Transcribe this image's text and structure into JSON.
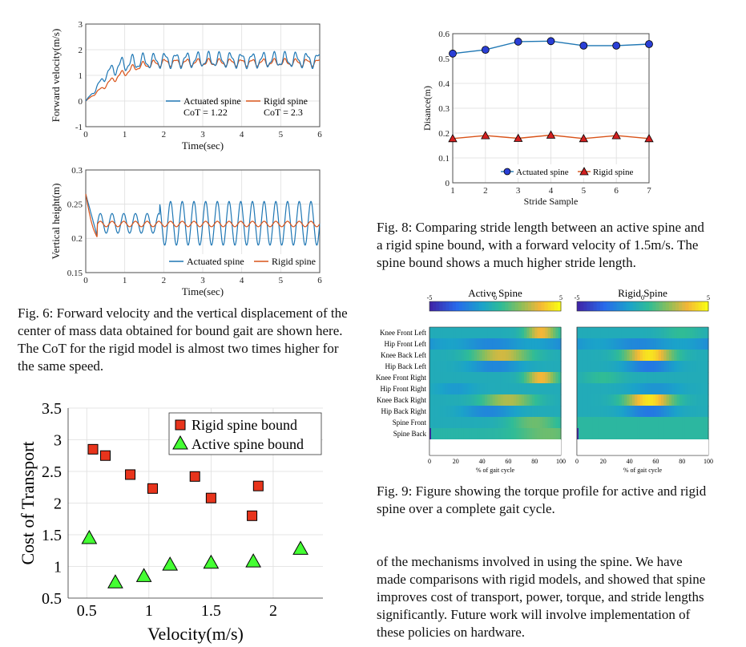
{
  "colors": {
    "actuated": "#1f77b4",
    "rigid": "#d95319",
    "rigid_marker": "#e8341c",
    "active_marker": "#44ff33",
    "marker_edge": "#000000",
    "grid": "#dedede",
    "axis": "#333333"
  },
  "captions": {
    "fig6": [
      "Fig. 6: Forward velocity and the vertical displacement of the",
      "center of mass data obtained for bound gait are shown here.",
      "The CoT for the rigid model is almost two times higher for",
      "the same speed."
    ],
    "fig8": [
      "Fig. 8: Comparing stride length between an active spine and",
      "a rigid spine bound, with a forward velocity of 1.5m/s. The",
      "spine bound shows a much higher stride length."
    ],
    "fig9": [
      "Fig. 9: Figure showing the torque profile for active and rigid",
      "spine over a complete gait cycle."
    ],
    "body": [
      "of the mechanisms involved in using the spine. We have",
      "made comparisons with rigid models, and showed that spine",
      "improves cost of transport, power, torque, and stride lengths",
      "significantly. Future work will involve implementation of",
      "these policies on hardware."
    ]
  },
  "chart_data": [
    {
      "id": "forward-velocity",
      "type": "line",
      "xlabel": "Time(sec)",
      "ylabel": "Forward velocity(m/s)",
      "xlim": [
        0,
        6
      ],
      "ylim": [
        -1,
        3
      ],
      "xticks": [
        "0",
        "1",
        "2",
        "3",
        "4",
        "5",
        "6"
      ],
      "yticks": [
        "-1",
        "0",
        "1",
        "2",
        "3"
      ],
      "grid": true,
      "legend": [
        {
          "name": "Actuated spine",
          "sub": "CoT = 1.22"
        },
        {
          "name": "Rigid spine",
          "sub": "CoT = 2.3"
        }
      ],
      "series": [
        {
          "name": "Actuated spine",
          "x": [
            0,
            0.25,
            0.5,
            0.75,
            1,
            1.25,
            1.5,
            1.75,
            2,
            2.5,
            3,
            3.5,
            4,
            4.5,
            5,
            5.5,
            6
          ],
          "y": [
            0,
            0.45,
            1.0,
            1.3,
            1.45,
            1.5,
            1.55,
            1.55,
            1.6,
            1.6,
            1.6,
            1.6,
            1.6,
            1.6,
            1.6,
            1.6,
            1.6
          ],
          "oscillation": 0.25
        },
        {
          "name": "Rigid spine",
          "x": [
            0,
            0.25,
            0.5,
            0.75,
            1,
            1.25,
            1.5,
            1.75,
            2,
            2.5,
            3,
            3.5,
            4,
            4.5,
            5,
            5.5,
            6
          ],
          "y": [
            0,
            0.3,
            0.6,
            0.9,
            1.1,
            1.3,
            1.4,
            1.45,
            1.5,
            1.5,
            1.5,
            1.5,
            1.5,
            1.5,
            1.5,
            1.5,
            1.5
          ],
          "oscillation": 0.12
        }
      ]
    },
    {
      "id": "vertical-height",
      "type": "line",
      "xlabel": "Time(sec)",
      "ylabel": "Vertical height(m)",
      "xlim": [
        0,
        6
      ],
      "ylim": [
        0.15,
        0.3
      ],
      "xticks": [
        "0",
        "1",
        "2",
        "3",
        "4",
        "5",
        "6"
      ],
      "yticks": [
        "0.15",
        "0.2",
        "0.25",
        "0.3"
      ],
      "grid": true,
      "legend": [
        {
          "name": "Actuated spine"
        },
        {
          "name": "Rigid spine"
        }
      ],
      "series": [
        {
          "name": "Actuated spine",
          "center": 0.222,
          "amplitude": 0.032,
          "period": 0.3,
          "start": 0.265
        },
        {
          "name": "Rigid spine",
          "center": 0.221,
          "amplitude": 0.004,
          "period": 0.3,
          "start": 0.265
        }
      ]
    },
    {
      "id": "cost-of-transport",
      "type": "scatter",
      "xlabel": "Velocity(m/s)",
      "ylabel": "Cost of Transport",
      "xlim": [
        0.35,
        2.4
      ],
      "ylim": [
        0.5,
        3.5
      ],
      "xticks": [
        0.5,
        1,
        1.5,
        2
      ],
      "yticks": [
        0.5,
        1,
        1.5,
        2,
        2.5,
        3,
        3.5
      ],
      "grid": true,
      "legend_position": "top-right",
      "series": [
        {
          "name": "Rigid spine bound",
          "marker": "square",
          "x": [
            0.55,
            0.65,
            0.85,
            1.03,
            1.37,
            1.5,
            1.83,
            1.88
          ],
          "y": [
            2.85,
            2.75,
            2.45,
            2.23,
            2.42,
            2.08,
            1.8,
            2.27
          ]
        },
        {
          "name": "Active spine bound",
          "marker": "triangle",
          "x": [
            0.52,
            0.73,
            0.96,
            1.17,
            1.5,
            1.84,
            2.22
          ],
          "y": [
            1.45,
            0.75,
            0.85,
            1.03,
            1.06,
            1.08,
            1.28
          ]
        }
      ]
    },
    {
      "id": "stride-length",
      "type": "line",
      "xlabel": "Stride Sample",
      "ylabel": "Disance(m)",
      "xlim": [
        1,
        7
      ],
      "ylim": [
        0,
        0.6
      ],
      "xticks": [
        "1",
        "2",
        "3",
        "4",
        "5",
        "6",
        "7"
      ],
      "yticks": [
        "0",
        "0.1",
        "0.2",
        "0.3",
        "0.4",
        "0.5",
        "0.6"
      ],
      "grid": true,
      "legend_position": "bottom",
      "series": [
        {
          "name": "Actuated spine",
          "marker": "circle",
          "x": [
            1,
            2,
            3,
            4,
            5,
            6,
            7
          ],
          "y": [
            0.52,
            0.535,
            0.568,
            0.57,
            0.552,
            0.552,
            0.558
          ]
        },
        {
          "name": "Rigid spine",
          "marker": "triangle",
          "x": [
            1,
            2,
            3,
            4,
            5,
            6,
            7
          ],
          "y": [
            0.178,
            0.19,
            0.179,
            0.192,
            0.178,
            0.19,
            0.178
          ]
        }
      ]
    },
    {
      "id": "torque-heatmaps",
      "type": "heatmap",
      "panels": [
        {
          "title": "Active Spine",
          "pattern": "active"
        },
        {
          "title": "Rigid Spine",
          "pattern": "rigid"
        }
      ],
      "colorbar_ticks": [
        "-5",
        "0",
        "5"
      ],
      "rows": [
        "Knee Front Left",
        "Hip Front Left",
        "Knee Back Left",
        "Hip Back Left",
        "Knee Front Right",
        "Hip Front Right",
        "Knee Back Right",
        "Hip Back Right",
        "Spine Front",
        "Spine Back"
      ],
      "xticks": [
        "0",
        "20",
        "40",
        "60",
        "80",
        "100"
      ],
      "xlabel": "% of gait cycle"
    }
  ]
}
